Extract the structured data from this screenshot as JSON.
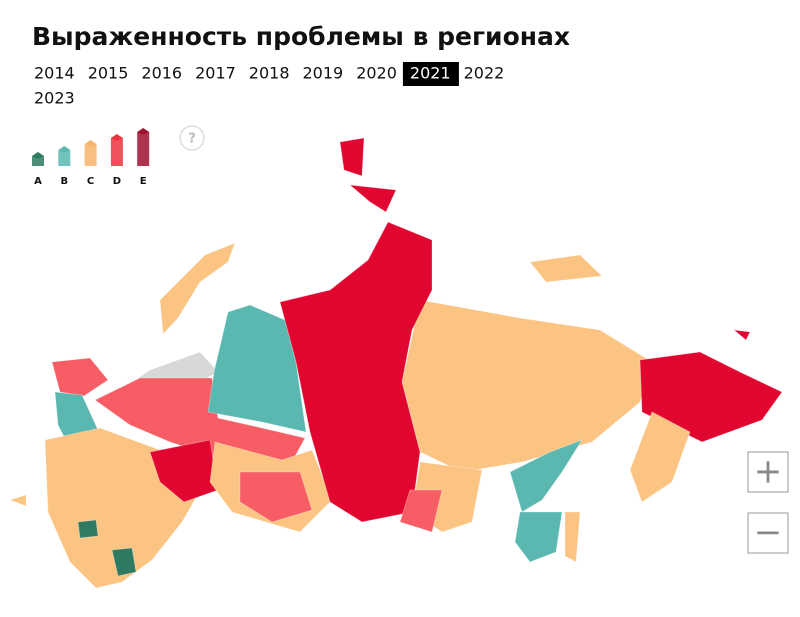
{
  "header": {
    "title": "Выраженность проблемы в регионах"
  },
  "years": [
    {
      "label": "2014",
      "active": false
    },
    {
      "label": "2015",
      "active": false
    },
    {
      "label": "2016",
      "active": false
    },
    {
      "label": "2017",
      "active": false
    },
    {
      "label": "2018",
      "active": false
    },
    {
      "label": "2019",
      "active": false
    },
    {
      "label": "2020",
      "active": false
    },
    {
      "label": "2021",
      "active": true
    },
    {
      "label": "2022",
      "active": false
    },
    {
      "label": "2023",
      "active": false
    }
  ],
  "legend": [
    {
      "label": "A",
      "color": "#2f7a62"
    },
    {
      "label": "B",
      "color": "#5bb8b1"
    },
    {
      "label": "C",
      "color": "#f7b46c"
    },
    {
      "label": "D",
      "color": "#ec3340"
    },
    {
      "label": "E",
      "color": "#a0112f"
    }
  ],
  "help": "?",
  "zoom": {
    "in": "+",
    "out": "−"
  }
}
